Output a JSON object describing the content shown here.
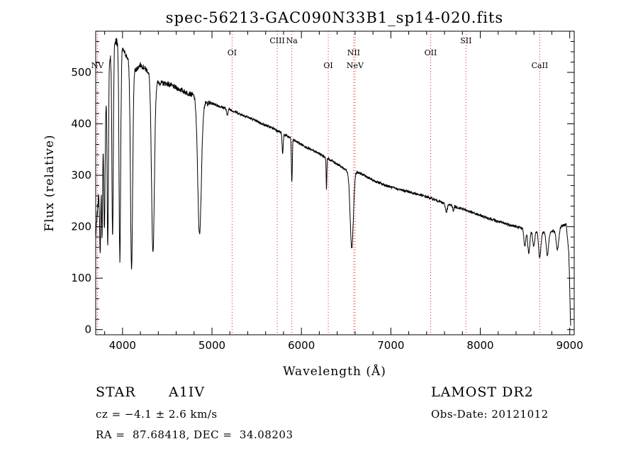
{
  "chart_data": {
    "type": "line",
    "title": "spec-56213-GAC090N33B1_sp14-020.fits",
    "xlabel": "Wavelength (Å)",
    "ylabel": "Flux (relative)",
    "xlim": [
      3700,
      9050
    ],
    "ylim": [
      -10,
      580
    ],
    "xticks": [
      4000,
      5000,
      6000,
      7000,
      8000,
      9000
    ],
    "yticks": [
      0,
      100,
      200,
      300,
      400,
      500
    ],
    "grid": false,
    "line_color": "#000000",
    "marker_color": "#d62020",
    "continuum": [
      [
        3700,
        180
      ],
      [
        3760,
        330
      ],
      [
        3800,
        420
      ],
      [
        3850,
        520
      ],
      [
        3900,
        560
      ],
      [
        3950,
        560
      ],
      [
        4000,
        545
      ],
      [
        4050,
        530
      ],
      [
        4100,
        510
      ],
      [
        4150,
        505
      ],
      [
        4200,
        515
      ],
      [
        4300,
        500
      ],
      [
        4400,
        480
      ],
      [
        4500,
        478
      ],
      [
        4600,
        470
      ],
      [
        4700,
        462
      ],
      [
        4800,
        455
      ],
      [
        4850,
        445
      ],
      [
        4900,
        440
      ],
      [
        5000,
        440
      ],
      [
        5100,
        433
      ],
      [
        5200,
        428
      ],
      [
        5300,
        420
      ],
      [
        5400,
        413
      ],
      [
        5500,
        405
      ],
      [
        5600,
        397
      ],
      [
        5700,
        390
      ],
      [
        5800,
        380
      ],
      [
        5900,
        370
      ],
      [
        6000,
        360
      ],
      [
        6100,
        350
      ],
      [
        6200,
        342
      ],
      [
        6300,
        332
      ],
      [
        6400,
        322
      ],
      [
        6500,
        310
      ],
      [
        6600,
        308
      ],
      [
        6700,
        300
      ],
      [
        6800,
        290
      ],
      [
        6900,
        283
      ],
      [
        7000,
        277
      ],
      [
        7100,
        272
      ],
      [
        7200,
        268
      ],
      [
        7300,
        263
      ],
      [
        7400,
        258
      ],
      [
        7500,
        252
      ],
      [
        7600,
        245
      ],
      [
        7700,
        240
      ],
      [
        7800,
        235
      ],
      [
        7900,
        228
      ],
      [
        8000,
        222
      ],
      [
        8100,
        216
      ],
      [
        8200,
        210
      ],
      [
        8300,
        205
      ],
      [
        8400,
        200
      ],
      [
        8500,
        196
      ],
      [
        8600,
        192
      ],
      [
        8700,
        190
      ],
      [
        8800,
        190
      ],
      [
        8900,
        200
      ],
      [
        8960,
        205
      ],
      [
        8990,
        150
      ],
      [
        9010,
        5
      ]
    ],
    "absorption_features": [
      {
        "wavelength": 3750,
        "depth": 160,
        "width": 6
      },
      {
        "wavelength": 3771,
        "depth": 170,
        "width": 6
      },
      {
        "wavelength": 3798,
        "depth": 220,
        "width": 7
      },
      {
        "wavelength": 3835,
        "depth": 330,
        "width": 7
      },
      {
        "wavelength": 3889,
        "depth": 370,
        "width": 8
      },
      {
        "wavelength": 3970,
        "depth": 420,
        "width": 9
      },
      {
        "wavelength": 4101,
        "depth": 395,
        "width": 12
      },
      {
        "wavelength": 4340,
        "depth": 345,
        "width": 16
      },
      {
        "wavelength": 4861,
        "depth": 260,
        "width": 20
      },
      {
        "wavelength": 5170,
        "depth": 12,
        "width": 8
      },
      {
        "wavelength": 5790,
        "depth": 40,
        "width": 6
      },
      {
        "wavelength": 5893,
        "depth": 85,
        "width": 5
      },
      {
        "wavelength": 6280,
        "depth": 60,
        "width": 4
      },
      {
        "wavelength": 6563,
        "depth": 150,
        "width": 18
      },
      {
        "wavelength": 7620,
        "depth": 15,
        "width": 10
      },
      {
        "wavelength": 7700,
        "depth": 10,
        "width": 5
      },
      {
        "wavelength": 8498,
        "depth": 35,
        "width": 10
      },
      {
        "wavelength": 8542,
        "depth": 45,
        "width": 12
      },
      {
        "wavelength": 8598,
        "depth": 30,
        "width": 11
      },
      {
        "wavelength": 8665,
        "depth": 50,
        "width": 13
      },
      {
        "wavelength": 8750,
        "depth": 45,
        "width": 13
      },
      {
        "wavelength": 8863,
        "depth": 40,
        "width": 14
      }
    ],
    "line_markers": [
      {
        "label": "NV",
        "wavelength": 3720,
        "tier": 2
      },
      {
        "label": "OI",
        "wavelength": 5225,
        "tier": 1
      },
      {
        "label": "CIII",
        "wavelength": 5730,
        "tier": 0
      },
      {
        "label": "Na",
        "wavelength": 5893,
        "tier": 0
      },
      {
        "label": "OI",
        "wavelength": 6300,
        "tier": 2
      },
      {
        "label": "NII",
        "wavelength": 6584,
        "tier": 1
      },
      {
        "label": "NeV",
        "wavelength": 6600,
        "tier": 2
      },
      {
        "label": "OII",
        "wavelength": 7445,
        "tier": 1
      },
      {
        "label": "SII",
        "wavelength": 7840,
        "tier": 0
      },
      {
        "label": "CaII",
        "wavelength": 8665,
        "tier": 2
      }
    ]
  },
  "info": {
    "class_label": "STAR",
    "subclass": "A1IV",
    "cz_line": "cz = −4.1 ± 2.6 km/s",
    "coords_line": "RA =  87.68418, DEC =  34.08203",
    "survey": "LAMOST DR2",
    "obs_date_line": "Obs-Date: 20121012"
  }
}
